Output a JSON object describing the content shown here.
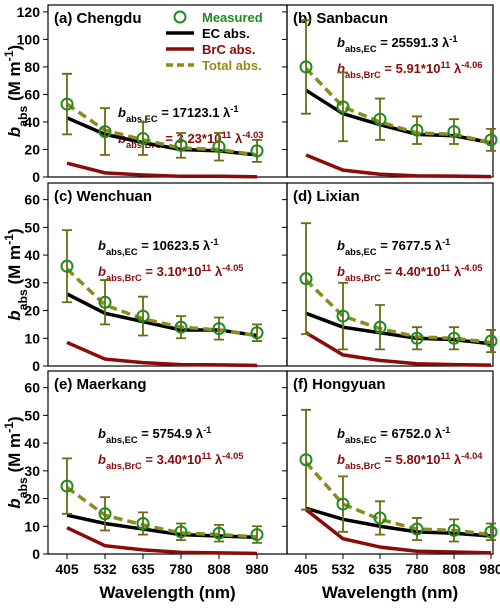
{
  "chart_data": [
    {
      "type": "line",
      "title": "(a) Chengdu",
      "ylabel": [
        "b",
        "abs",
        " (M m",
        "-1",
        ")"
      ],
      "ylim": [
        0,
        125
      ],
      "yticks": [
        0,
        20,
        40,
        60,
        80,
        100,
        120
      ],
      "series": [
        {
          "name": "Measured",
          "color": "#1e8c1e",
          "values": [
            53,
            33,
            28,
            23,
            22,
            19
          ],
          "errors": [
            22,
            17,
            12,
            9,
            10,
            8
          ]
        },
        {
          "name": "EC abs.",
          "color": "#000000",
          "values": [
            43,
            31,
            25,
            20,
            19,
            16
          ]
        },
        {
          "name": "BrC abs.",
          "color": "#8b0a0a",
          "values": [
            10,
            3,
            1.5,
            0.5,
            0.5,
            0.2
          ]
        },
        {
          "name": "Total abs.",
          "color": "#8c8c1a",
          "values": [
            53,
            34,
            27,
            21,
            20,
            16
          ]
        }
      ],
      "ec_fit": [
        "b",
        "abs,EC",
        " = 17123.1 λ",
        "-1"
      ],
      "brc_fit": [
        "b",
        "abs,BrC",
        " = 3.23*10",
        "11",
        " λ",
        "-4.03"
      ]
    },
    {
      "type": "line",
      "title": "(b) Sanbacun",
      "ylim": [
        0,
        125
      ],
      "yticks": [
        0,
        20,
        40,
        60,
        80,
        100,
        120
      ],
      "series": [
        {
          "color": "#1e8c1e",
          "values": [
            80,
            51,
            42,
            34,
            33,
            27
          ],
          "errors": [
            34,
            25,
            15,
            10,
            9,
            8
          ]
        },
        {
          "color": "#000000",
          "values": [
            63,
            46,
            38,
            31,
            30,
            25
          ]
        },
        {
          "color": "#8b0a0a",
          "values": [
            16,
            5,
            2,
            0.8,
            0.6,
            0.3
          ]
        },
        {
          "color": "#8c8c1a",
          "values": [
            79,
            51,
            40,
            32,
            31,
            25
          ]
        }
      ],
      "ec_fit": [
        "b",
        "abs,EC",
        " = 25591.3 λ",
        "-1"
      ],
      "brc_fit": [
        "b",
        "abs,BrC",
        " = 5.91*10",
        "11",
        " λ",
        "-4.06"
      ]
    },
    {
      "type": "line",
      "title": "(c) Wenchuan",
      "ylabel": [
        "b",
        "abs",
        " (M m",
        "-1",
        ")"
      ],
      "ylim": [
        0,
        66
      ],
      "yticks": [
        0,
        10,
        20,
        30,
        40,
        50,
        60
      ],
      "series": [
        {
          "color": "#1e8c1e",
          "values": [
            36,
            23,
            18,
            14,
            13.5,
            12
          ],
          "errors": [
            13,
            8,
            7,
            4,
            4,
            3
          ]
        },
        {
          "color": "#000000",
          "values": [
            26,
            19,
            16,
            13,
            13,
            11
          ]
        },
        {
          "color": "#8b0a0a",
          "values": [
            8.5,
            2.5,
            1.2,
            0.5,
            0.4,
            0.2
          ]
        },
        {
          "color": "#8c8c1a",
          "values": [
            35,
            22,
            17,
            14,
            13,
            11
          ]
        }
      ],
      "ec_fit": [
        "b",
        "abs,EC",
        " = 10623.5 λ",
        "-1"
      ],
      "brc_fit": [
        "b",
        "abs,BrC",
        " = 3.10*10",
        "11",
        " λ",
        "-4.05"
      ]
    },
    {
      "type": "line",
      "title": "(d) Lixian",
      "ylim": [
        0,
        66
      ],
      "yticks": [
        0,
        10,
        20,
        30,
        40,
        50,
        60
      ],
      "series": [
        {
          "color": "#1e8c1e",
          "values": [
            31.5,
            18,
            14,
            10,
            10,
            9
          ],
          "errors": [
            20,
            12,
            8,
            4,
            4,
            4
          ]
        },
        {
          "color": "#000000",
          "values": [
            19,
            14,
            12,
            10,
            9.5,
            8
          ]
        },
        {
          "color": "#8b0a0a",
          "values": [
            12,
            4,
            2,
            0.8,
            0.5,
            0.3
          ]
        },
        {
          "color": "#8c8c1a",
          "values": [
            31,
            18,
            13.5,
            10.5,
            10,
            8.5
          ]
        }
      ],
      "ec_fit": [
        "b",
        "abs,EC",
        " = 7677.5 λ",
        "-1"
      ],
      "brc_fit": [
        "b",
        "abs,BrC",
        " = 4.40*10",
        "11",
        " λ",
        "-4.05"
      ]
    },
    {
      "type": "line",
      "title": "(e) Maerkang",
      "ylabel": [
        "b",
        "abs",
        " (M m",
        "-1",
        ")"
      ],
      "xlabel": "Wavelength (nm)",
      "categories": [
        "405",
        "532",
        "635",
        "780",
        "808",
        "980"
      ],
      "ylim": [
        0,
        66
      ],
      "yticks": [
        0,
        10,
        20,
        30,
        40,
        50,
        60
      ],
      "series": [
        {
          "color": "#1e8c1e",
          "values": [
            24.5,
            14.5,
            11,
            8,
            7.5,
            7
          ],
          "errors": [
            10,
            6,
            4,
            3,
            3,
            3
          ]
        },
        {
          "color": "#000000",
          "values": [
            14,
            11,
            9,
            7,
            6.5,
            6
          ]
        },
        {
          "color": "#8b0a0a",
          "values": [
            9.5,
            3,
            1.5,
            0.6,
            0.4,
            0.2
          ]
        },
        {
          "color": "#8c8c1a",
          "values": [
            24,
            14,
            10.5,
            7.6,
            7,
            6.2
          ]
        }
      ],
      "ec_fit": [
        "b",
        "abs,EC",
        " = 5754.9 λ",
        "-1"
      ],
      "brc_fit": [
        "b",
        "abs,BrC",
        " = 3.40*10",
        "11",
        " λ",
        "-4.05"
      ]
    },
    {
      "type": "line",
      "title": "(f) Hongyuan",
      "xlabel": "Wavelength (nm)",
      "categories": [
        "405",
        "532",
        "635",
        "780",
        "808",
        "980"
      ],
      "ylim": [
        0,
        66
      ],
      "yticks": [
        0,
        10,
        20,
        30,
        40,
        50,
        60
      ],
      "series": [
        {
          "color": "#1e8c1e",
          "values": [
            34,
            18,
            13,
            9,
            8.5,
            8
          ],
          "errors": [
            18,
            10,
            6,
            4,
            4,
            3
          ]
        },
        {
          "color": "#000000",
          "values": [
            16.5,
            12.5,
            10,
            8,
            7.5,
            6.5
          ]
        },
        {
          "color": "#8b0a0a",
          "values": [
            16,
            5.5,
            2.5,
            1,
            0.7,
            0.4
          ]
        },
        {
          "color": "#8c8c1a",
          "values": [
            33,
            18,
            12.5,
            9,
            8.5,
            7
          ]
        }
      ],
      "ec_fit": [
        "b",
        "abs,EC",
        " = 6752.0 λ",
        "-1"
      ],
      "brc_fit": [
        "b",
        "abs,BrC",
        " = 5.80*10",
        "11",
        " λ",
        "-4.04"
      ]
    }
  ]
}
